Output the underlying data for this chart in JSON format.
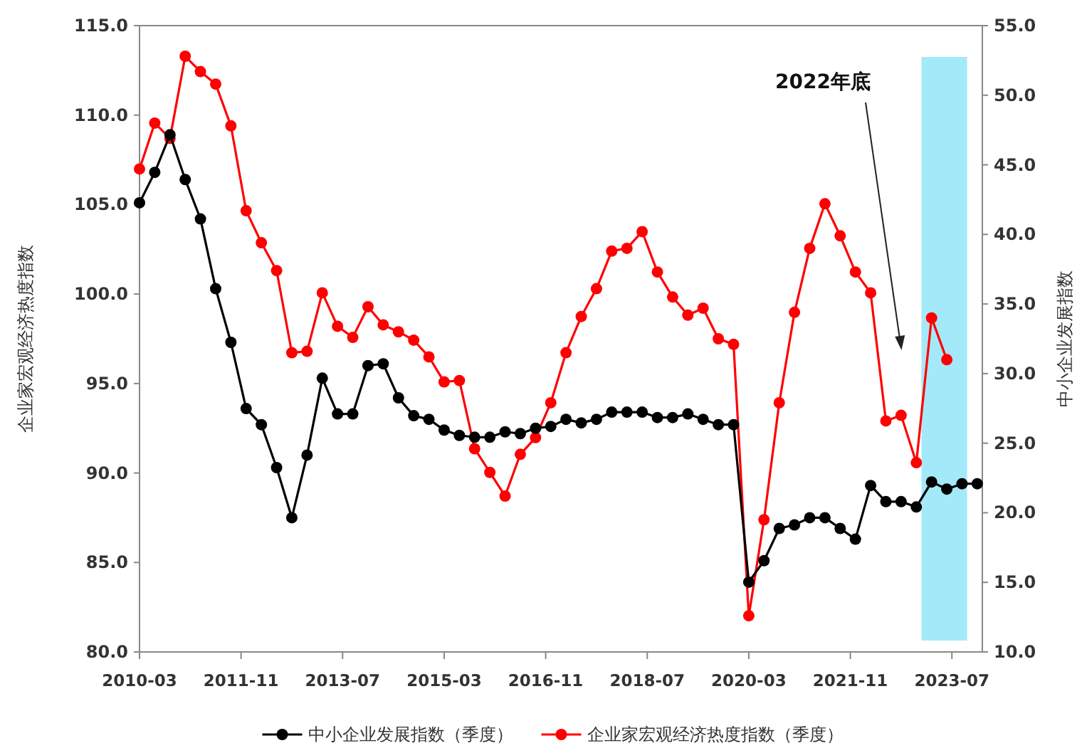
{
  "chart_data": {
    "type": "line",
    "ylabel": "企业家宏观经济热度指数",
    "y2label": "中小企业发展指数",
    "xlim": [
      "2010-03",
      "2024-01"
    ],
    "xticks": [
      "2010-03",
      "2011-11",
      "2013-07",
      "2015-03",
      "2016-11",
      "2018-07",
      "2020-03",
      "2021-11",
      "2023-07"
    ],
    "ylim": [
      80,
      115
    ],
    "yticks": [
      {
        "value": 80,
        "label": "80.0"
      },
      {
        "value": 85,
        "label": "85.0"
      },
      {
        "value": 90,
        "label": "90.0"
      },
      {
        "value": 95,
        "label": "95.0"
      },
      {
        "value": 100,
        "label": "100.0"
      },
      {
        "value": 105,
        "label": "105.0"
      },
      {
        "value": 110,
        "label": "110.0"
      },
      {
        "value": 115,
        "label": "115.0"
      }
    ],
    "y2lim": [
      10,
      55
    ],
    "y2ticks": [
      {
        "value": 10,
        "label": "10.0"
      },
      {
        "value": 15,
        "label": "15.0"
      },
      {
        "value": 20,
        "label": "20.0"
      },
      {
        "value": 25,
        "label": "25.0"
      },
      {
        "value": 30,
        "label": "30.0"
      },
      {
        "value": 35,
        "label": "35.0"
      },
      {
        "value": 40,
        "label": "40.0"
      },
      {
        "value": 45,
        "label": "45.0"
      },
      {
        "value": 50,
        "label": "50.0"
      },
      {
        "value": 55,
        "label": "55.0"
      }
    ],
    "marker": "circle",
    "legend": "bottom",
    "bands": [
      {
        "axis": "x",
        "from": "2023-01",
        "to": "2023-10",
        "color": "#a4e9f9"
      }
    ],
    "annotations": [
      "2022年底"
    ],
    "series": [
      {
        "name": "中小企业发展指数（季度）",
        "color": "#000000",
        "x": [
          "2010-03",
          "2010-06",
          "2010-09",
          "2010-12",
          "2011-03",
          "2011-06",
          "2011-09",
          "2011-12",
          "2012-03",
          "2012-06",
          "2012-09",
          "2012-12",
          "2013-03",
          "2013-06",
          "2013-09",
          "2013-12",
          "2014-03",
          "2014-06",
          "2014-09",
          "2014-12",
          "2015-03",
          "2015-06",
          "2015-09",
          "2015-12",
          "2016-03",
          "2016-06",
          "2016-09",
          "2016-12",
          "2017-03",
          "2017-06",
          "2017-09",
          "2017-12",
          "2018-03",
          "2018-06",
          "2018-09",
          "2018-12",
          "2019-03",
          "2019-06",
          "2019-09",
          "2019-12",
          "2020-03",
          "2020-06",
          "2020-09",
          "2020-12",
          "2021-03",
          "2021-06",
          "2021-09",
          "2021-12",
          "2022-03",
          "2022-06",
          "2022-09",
          "2022-12",
          "2023-03",
          "2023-06",
          "2023-09",
          "2023-12"
        ],
        "values": [
          105.1,
          106.8,
          108.9,
          106.4,
          104.2,
          100.3,
          97.3,
          93.6,
          92.7,
          90.3,
          87.5,
          91.0,
          95.3,
          93.3,
          93.3,
          96.0,
          96.1,
          94.2,
          93.2,
          93.0,
          92.4,
          92.1,
          92.0,
          92.0,
          92.3,
          92.2,
          92.5,
          92.6,
          93.0,
          92.8,
          93.0,
          93.4,
          93.4,
          93.4,
          93.1,
          93.1,
          93.3,
          93.0,
          92.7,
          92.7,
          83.9,
          85.1,
          86.9,
          87.1,
          87.5,
          87.5,
          86.9,
          86.3,
          89.3,
          88.4,
          88.4,
          88.1,
          89.5,
          89.1,
          89.4,
          89.4
        ]
      },
      {
        "name": "企业家宏观经济热度指数（季度）",
        "color": "#ff0000",
        "axis": "y2",
        "x": [
          "2010-03",
          "2010-06",
          "2010-09",
          "2010-12",
          "2011-03",
          "2011-06",
          "2011-09",
          "2011-12",
          "2012-03",
          "2012-06",
          "2012-09",
          "2012-12",
          "2013-03",
          "2013-06",
          "2013-09",
          "2013-12",
          "2014-03",
          "2014-06",
          "2014-09",
          "2014-12",
          "2015-03",
          "2015-06",
          "2015-09",
          "2015-12",
          "2016-03",
          "2016-06",
          "2016-09",
          "2016-12",
          "2017-03",
          "2017-06",
          "2017-09",
          "2017-12",
          "2018-03",
          "2018-06",
          "2018-09",
          "2018-12",
          "2019-03",
          "2019-06",
          "2019-09",
          "2019-12",
          "2020-03",
          "2020-06",
          "2020-09",
          "2020-12",
          "2021-03",
          "2021-06",
          "2021-09",
          "2021-12",
          "2022-03",
          "2022-06",
          "2022-09",
          "2022-12",
          "2023-03",
          "2023-06"
        ],
        "values": [
          44.7,
          48.0,
          46.9,
          52.8,
          51.7,
          50.8,
          47.8,
          41.7,
          39.4,
          37.4,
          31.5,
          31.6,
          35.8,
          33.4,
          32.6,
          34.8,
          33.5,
          33.0,
          32.4,
          31.2,
          29.4,
          29.5,
          24.6,
          22.9,
          21.2,
          24.2,
          25.4,
          27.9,
          31.5,
          34.1,
          36.1,
          38.8,
          39.0,
          40.2,
          37.3,
          35.5,
          34.2,
          34.7,
          32.5,
          32.1,
          12.6,
          19.5,
          27.9,
          34.4,
          39.0,
          42.2,
          39.9,
          37.3,
          35.8,
          26.6,
          27.0,
          23.6,
          34.0,
          31.0
        ]
      }
    ]
  }
}
